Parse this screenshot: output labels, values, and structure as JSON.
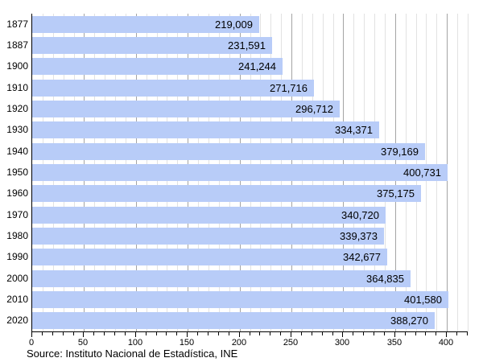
{
  "chart_data": {
    "type": "bar",
    "orientation": "horizontal",
    "title": "",
    "xlabel": "",
    "ylabel": "",
    "categories": [
      "1877",
      "1887",
      "1900",
      "1910",
      "1920",
      "1930",
      "1940",
      "1950",
      "1960",
      "1970",
      "1980",
      "1990",
      "2000",
      "2010",
      "2020"
    ],
    "values": [
      219009,
      231591,
      241244,
      271716,
      296712,
      334371,
      379169,
      400731,
      375175,
      340720,
      339373,
      342677,
      364835,
      401580,
      388270
    ],
    "value_labels": [
      "219,009",
      "231,591",
      "241,244",
      "271,716",
      "296,712",
      "334,371",
      "379,169",
      "400,731",
      "375,175",
      "340,720",
      "339,373",
      "342,677",
      "364,835",
      "401,580",
      "388,270"
    ],
    "xlim": [
      0,
      420
    ],
    "x_unit_divisor": 1000,
    "x_major_tick_step": 50,
    "x_minor_tick_step": 10,
    "x_tick_labels": [
      "0",
      "50",
      "100",
      "150",
      "200",
      "250",
      "300",
      "350",
      "400"
    ],
    "grid": "vertical",
    "legend": "none",
    "bar_color": "#b8ccf8",
    "major_grid_color": "#a4a4a4",
    "minor_grid_color": "#e2e2e2",
    "axis_color": "#000000"
  },
  "source_note": "Source: Instituto Nacional de Estadística, INE"
}
